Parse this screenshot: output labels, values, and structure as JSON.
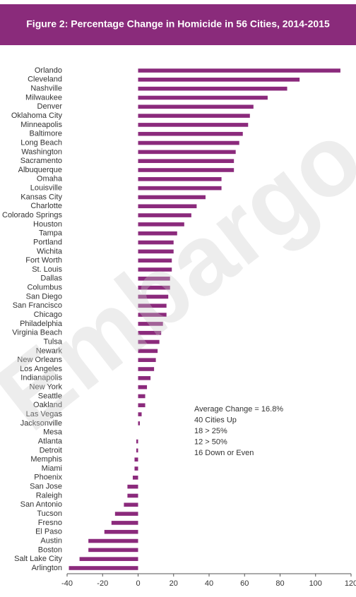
{
  "chart_data": {
    "type": "barh",
    "title": "Figure 2: Percentage Change in Homicide in 56 Cities, 2014-2015",
    "categories": [
      "Orlando",
      "Cleveland",
      "Nashville",
      "Milwaukee",
      "Denver",
      "Oklahoma City",
      "Minneapolis",
      "Baltimore",
      "Long Beach",
      "Washington",
      "Sacramento",
      "Albuquerque",
      "Omaha",
      "Louisville",
      "Kansas City",
      "Charlotte",
      "Colorado Springs",
      "Houston",
      "Tampa",
      "Portland",
      "Wichita",
      "Fort Worth",
      "St. Louis",
      "Dallas",
      "Columbus",
      "San Diego",
      "San Francisco",
      "Chicago",
      "Philadelphia",
      "Virginia Beach",
      "Tulsa",
      "Newark",
      "New Orleans",
      "Los Angeles",
      "Indianapolis",
      "New York",
      "Seattle",
      "Oakland",
      "Las Vegas",
      "Jacksonville",
      "Mesa",
      "Atlanta",
      "Detroit",
      "Memphis",
      "Miami",
      "Phoenix",
      "San Jose",
      "Raleigh",
      "San Antonio",
      "Tucson",
      "Fresno",
      "El Paso",
      "Austin",
      "Boston",
      "Salt Lake City",
      "Arlington"
    ],
    "values": [
      114,
      91,
      84,
      73,
      65,
      63,
      62,
      59,
      57,
      55,
      54,
      54,
      47,
      47,
      38,
      33,
      30,
      26,
      22,
      20,
      20,
      19,
      19,
      18,
      18,
      17,
      16,
      16,
      14,
      13,
      12,
      11,
      10,
      9,
      7,
      5,
      4,
      4,
      2,
      1,
      0,
      -1,
      -1,
      -2,
      -2,
      -3,
      -6,
      -6,
      -8,
      -13,
      -15,
      -19,
      -28,
      -28,
      -33,
      -39
    ],
    "color": "#8b2a7c",
    "xlim": [
      -40,
      120
    ],
    "xticks": [
      -40,
      -20,
      0,
      20,
      40,
      60,
      80,
      100,
      120
    ],
    "annotations": [
      "Average Change = 16.8%",
      "40 Cities Up",
      "18 > 25%",
      "12 > 50%",
      "16 Down or Even"
    ],
    "watermark": "Embargo"
  }
}
